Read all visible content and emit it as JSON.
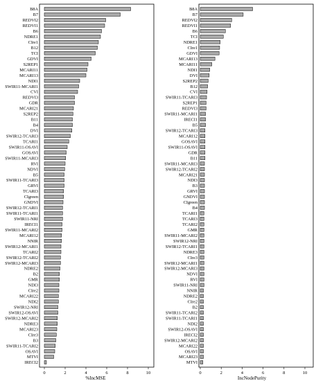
{
  "chart_data": [
    {
      "type": "bar",
      "orientation": "horizontal",
      "title": "",
      "xlabel": "%IncMSE",
      "ylabel": "",
      "xlim": [
        0,
        10
      ],
      "xticks": [
        0,
        2,
        4,
        6,
        8,
        10
      ],
      "grid": false,
      "color": "#a9a9a9",
      "categories": [
        "B8A",
        "B7",
        "REDVI2",
        "REDVI1",
        "B6",
        "NDRE1",
        "CIre1",
        "B12",
        "TCI",
        "GDVI",
        "S2REP1",
        "MCARI11",
        "MCARI13",
        "NDI1",
        "SWIR11-MCARI1",
        "CVI",
        "REDVI3",
        "GDR",
        "MCARI21",
        "S2REP2",
        "B11",
        "B4",
        "DVI",
        "SWIR12-TCARI3",
        "TCARI1",
        "SWIR11-OSAVI",
        "GOSAVI",
        "SWIR11-MCARI3",
        "RVI",
        "NDVI",
        "B5",
        "SWIR11-TCARI3",
        "GRVI",
        "TCARI3",
        "CIgreen",
        "GNDVI",
        "SWIR12-TCARI1",
        "SWIR11-TCARI1",
        "SWIR11-NRI",
        "IRECI1",
        "SWIR11-MCARI2",
        "MCARI12",
        "NNIR",
        "SWIR12-MCARI1",
        "TCARI2",
        "SWIR12-TCARI2",
        "SWIR12-MCARI3",
        "NDRE2",
        "B2",
        "GMR",
        "NDI3",
        "CIre2",
        "MCARI22",
        "NDI2",
        "SWIR12-NRI",
        "SWIR12-OSAVI",
        "SWIR12-MCARI2",
        "NDRE3",
        "MCARI23",
        "CIre3",
        "B3",
        "SWIR11-TCARI2",
        "OSAVI",
        "MTVI",
        "IRECI2"
      ],
      "values": [
        8.3,
        7.3,
        5.9,
        5.8,
        5.5,
        5.4,
        5.2,
        5.1,
        4.9,
        4.5,
        4.2,
        4.1,
        4.0,
        3.4,
        3.3,
        3.2,
        2.9,
        2.9,
        2.8,
        2.75,
        2.7,
        2.7,
        2.65,
        2.5,
        2.35,
        2.2,
        2.1,
        2.05,
        2.0,
        1.95,
        1.9,
        1.9,
        1.9,
        1.85,
        1.85,
        1.8,
        1.75,
        1.75,
        1.75,
        1.7,
        1.7,
        1.65,
        1.65,
        1.6,
        1.6,
        1.55,
        1.55,
        1.5,
        1.45,
        1.45,
        1.4,
        1.4,
        1.35,
        1.35,
        1.3,
        1.3,
        1.25,
        1.25,
        1.2,
        1.15,
        1.1,
        1.05,
        1.0,
        0.9,
        0.2
      ]
    },
    {
      "type": "bar",
      "orientation": "horizontal",
      "title": "",
      "xlabel": "IncNodePurity",
      "ylabel": "",
      "xlim": [
        0,
        10
      ],
      "xticks": [
        0,
        2,
        4,
        6,
        8,
        10
      ],
      "grid": false,
      "color": "#a9a9a9",
      "categories": [
        "B8A",
        "B7",
        "REDVI2",
        "REDVI1",
        "B6",
        "TCI",
        "NDRE1",
        "CIre1",
        "GDVI",
        "MCARI13",
        "MCARI11",
        "NDI1",
        "DVI",
        "S2REP2",
        "B12",
        "CVI",
        "SWIR11-TCARI3",
        "S2REP1",
        "REDVI3",
        "SWIR11-MCARI1",
        "IRECI1",
        "B5",
        "SWIR12-TCARI3",
        "MCARI12",
        "GOSAVI",
        "SWIR11-OSAVI",
        "GDR",
        "B11",
        "SWIR11-MCARI3",
        "SWIR12-TCARI2",
        "MCARI21",
        "NDI3",
        "B3",
        "GRVI",
        "GNDVI",
        "CIgreen",
        "B4",
        "TCARI1",
        "TCARI3",
        "TCARI2",
        "GMR",
        "SWIR11-MCARI2",
        "SWIR12-NRI",
        "SWIR12-TCARI1",
        "NDRE3",
        "CIre3",
        "SWIR12-MCARI1",
        "SWIR12-MCARI3",
        "NDVI",
        "RVI",
        "SWIR11-NRI",
        "NNIR",
        "NDRE2",
        "CIre2",
        "B2",
        "SWIR11-TCARI2",
        "SWIR11-TCARI1",
        "NDI2",
        "SWIR12-OSAVI",
        "IRECI2",
        "SWIR12-MCARI2",
        "MCARI22",
        "OSAVI",
        "MCARI23",
        "MTVI"
      ],
      "values": [
        5.0,
        4.1,
        3.0,
        2.9,
        2.4,
        2.2,
        1.9,
        1.85,
        1.8,
        1.4,
        1.1,
        0.9,
        0.85,
        0.75,
        0.7,
        0.65,
        0.6,
        0.55,
        0.55,
        0.5,
        0.5,
        0.5,
        0.45,
        0.45,
        0.45,
        0.45,
        0.45,
        0.45,
        0.4,
        0.4,
        0.4,
        0.4,
        0.4,
        0.4,
        0.4,
        0.4,
        0.4,
        0.35,
        0.35,
        0.35,
        0.35,
        0.35,
        0.35,
        0.35,
        0.35,
        0.35,
        0.35,
        0.35,
        0.35,
        0.35,
        0.35,
        0.3,
        0.3,
        0.3,
        0.3,
        0.3,
        0.3,
        0.3,
        0.3,
        0.3,
        0.3,
        0.3,
        0.3,
        0.3,
        0.25
      ]
    }
  ]
}
